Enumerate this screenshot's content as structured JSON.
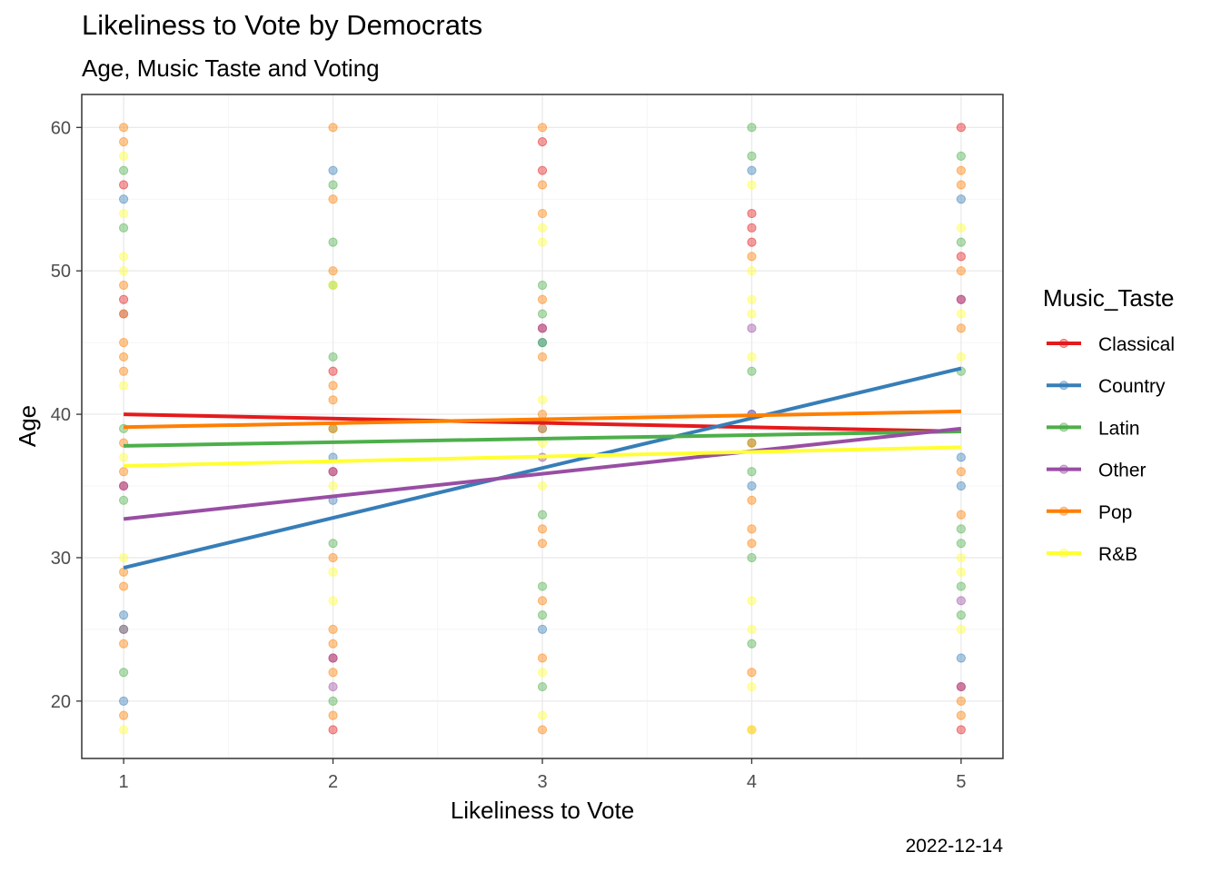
{
  "chart_data": {
    "type": "scatter",
    "title": "Likeliness to Vote by Democrats",
    "subtitle": "Age, Music Taste and Voting",
    "caption": "2022-12-14",
    "xlabel": "Likeliness to Vote",
    "ylabel": "Age",
    "xlim": [
      0.8,
      5.2
    ],
    "ylim": [
      16,
      62.3
    ],
    "x_ticks": [
      1,
      2,
      3,
      4,
      5
    ],
    "y_ticks": [
      20,
      30,
      40,
      50,
      60
    ],
    "grid": true,
    "legend": {
      "title": "Music_Taste",
      "position": "right"
    },
    "series": [
      {
        "name": "Classical",
        "color": "#E41A1C",
        "fit": {
          "x": [
            1,
            5
          ],
          "y": [
            40.0,
            38.8
          ]
        },
        "points": [
          {
            "x": 1,
            "y": [
              56,
              48,
              35
            ]
          },
          {
            "x": 2,
            "y": [
              43,
              36,
              23,
              18
            ]
          },
          {
            "x": 3,
            "y": [
              59,
              57,
              46
            ]
          },
          {
            "x": 4,
            "y": [
              54,
              53,
              52
            ]
          },
          {
            "x": 5,
            "y": [
              60,
              51,
              48,
              21,
              18
            ]
          }
        ]
      },
      {
        "name": "Country",
        "color": "#377EB8",
        "fit": {
          "x": [
            1,
            5
          ],
          "y": [
            29.3,
            43.2
          ]
        },
        "points": [
          {
            "x": 1,
            "y": [
              55,
              26,
              20
            ]
          },
          {
            "x": 2,
            "y": [
              57,
              37,
              34
            ]
          },
          {
            "x": 3,
            "y": [
              45,
              39,
              25
            ]
          },
          {
            "x": 4,
            "y": [
              57,
              40,
              35
            ]
          },
          {
            "x": 5,
            "y": [
              55,
              37,
              35,
              23
            ]
          }
        ]
      },
      {
        "name": "Latin",
        "color": "#4DAF4A",
        "fit": {
          "x": [
            1,
            5
          ],
          "y": [
            37.8,
            38.8
          ]
        },
        "points": [
          {
            "x": 1,
            "y": [
              57,
              53,
              39,
              34,
              25,
              22
            ]
          },
          {
            "x": 2,
            "y": [
              56,
              52,
              49,
              44,
              39,
              31,
              20
            ]
          },
          {
            "x": 3,
            "y": [
              49,
              47,
              45,
              33,
              28,
              26,
              21
            ]
          },
          {
            "x": 4,
            "y": [
              60,
              58,
              43,
              38,
              36,
              30,
              24
            ]
          },
          {
            "x": 5,
            "y": [
              58,
              52,
              43,
              32,
              31,
              28,
              26
            ]
          }
        ]
      },
      {
        "name": "Other",
        "color": "#984EA3",
        "fit": {
          "x": [
            1,
            5
          ],
          "y": [
            32.7,
            39.0
          ]
        },
        "points": [
          {
            "x": 1,
            "y": [
              47,
              35,
              25
            ]
          },
          {
            "x": 2,
            "y": [
              36,
              23,
              21
            ]
          },
          {
            "x": 3,
            "y": [
              46,
              37
            ]
          },
          {
            "x": 4,
            "y": [
              46,
              40
            ]
          },
          {
            "x": 5,
            "y": [
              48,
              27,
              21
            ]
          }
        ]
      },
      {
        "name": "Pop",
        "color": "#FF7F00",
        "fit": {
          "x": [
            1,
            5
          ],
          "y": [
            39.1,
            40.2
          ]
        },
        "points": [
          {
            "x": 1,
            "y": [
              60,
              59,
              49,
              47,
              45,
              44,
              43,
              38,
              36,
              29,
              28,
              24,
              19
            ]
          },
          {
            "x": 2,
            "y": [
              60,
              55,
              50,
              42,
              41,
              39,
              30,
              25,
              24,
              22,
              19
            ]
          },
          {
            "x": 3,
            "y": [
              60,
              56,
              54,
              48,
              44,
              40,
              39,
              32,
              31,
              27,
              23,
              18
            ]
          },
          {
            "x": 4,
            "y": [
              51,
              38,
              34,
              32,
              31,
              22,
              18
            ]
          },
          {
            "x": 5,
            "y": [
              57,
              56,
              50,
              46,
              36,
              33,
              20,
              19
            ]
          }
        ]
      },
      {
        "name": "R&B",
        "color": "#FFFF33",
        "fit": {
          "x": [
            1,
            5
          ],
          "y": [
            36.4,
            37.7
          ]
        },
        "points": [
          {
            "x": 1,
            "y": [
              58,
              54,
              51,
              50,
              42,
              37,
              30,
              18
            ]
          },
          {
            "x": 2,
            "y": [
              49,
              35,
              29,
              27
            ]
          },
          {
            "x": 3,
            "y": [
              53,
              52,
              41,
              38,
              35,
              22,
              19
            ]
          },
          {
            "x": 4,
            "y": [
              56,
              50,
              48,
              47,
              44,
              27,
              25,
              21,
              18
            ]
          },
          {
            "x": 5,
            "y": [
              53,
              47,
              44,
              30,
              29,
              25
            ]
          }
        ]
      }
    ]
  }
}
